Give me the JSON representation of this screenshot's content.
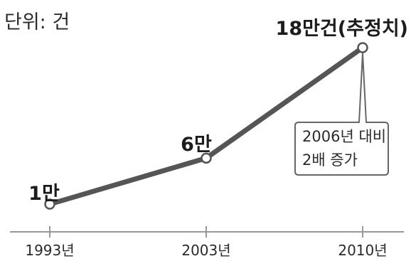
{
  "chart_data": {
    "type": "line",
    "unit": "단위: 건",
    "categories": [
      "1993년",
      "2003년",
      "2010년"
    ],
    "values": [
      10000,
      60000,
      180000
    ],
    "data_labels": [
      "1만",
      "6만",
      "18만건(추정치)"
    ],
    "annotation": {
      "lines": [
        "2006년 대비",
        "2배 증가"
      ],
      "target_index": 2
    },
    "ylim": [
      0,
      180000
    ],
    "grid": false,
    "line_color": "#555555",
    "marker_fill": "#ffffff",
    "axis_color": "#999999"
  }
}
